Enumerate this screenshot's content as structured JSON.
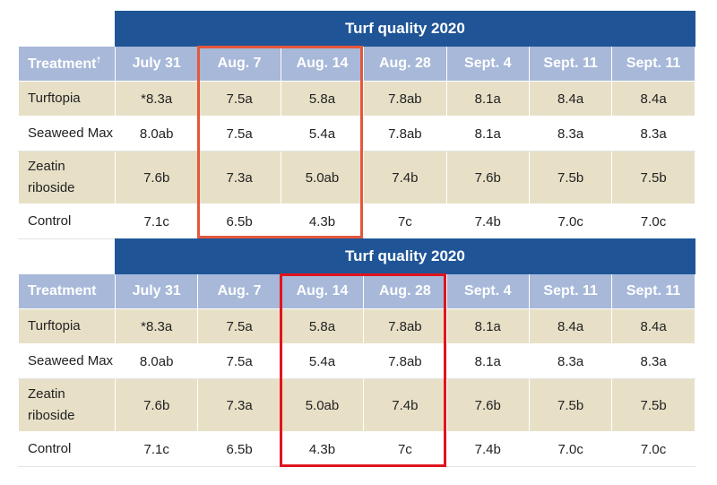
{
  "tables": [
    {
      "title": "Turf quality 2020",
      "headers": [
        "Treatment†",
        "July 31",
        "Aug. 7",
        "Aug. 14",
        "Aug. 28",
        "Sept. 4",
        "Sept. 11",
        "Sept. 11"
      ],
      "rows": [
        {
          "name": "Turftopia",
          "values": [
            "*8.3a",
            "7.5a",
            "5.8a",
            "7.8ab",
            "8.1a",
            "8.4a",
            "8.4a"
          ]
        },
        {
          "name": "Seaweed Max",
          "values": [
            "8.0ab",
            "7.5a",
            "5.4a",
            "7.8ab",
            "8.1a",
            "8.3a",
            "8.3a"
          ]
        },
        {
          "name": "Zeatin riboside",
          "values": [
            "7.6b",
            "7.3a",
            "5.0ab",
            "7.4b",
            "7.6b",
            "7.5b",
            "7.5b"
          ]
        },
        {
          "name": "Control",
          "values": [
            "7.1c",
            "6.5b",
            "4.3b",
            "7c",
            "7.4b",
            "7.0c",
            "7.0c"
          ]
        }
      ]
    },
    {
      "title": "Turf quality 2020",
      "headers": [
        "Treatment",
        "July 31",
        "Aug. 7",
        "Aug. 14",
        "Aug. 28",
        "Sept. 4",
        "Sept. 11",
        "Sept. 11"
      ],
      "rows": [
        {
          "name": "Turftopia",
          "values": [
            "*8.3a",
            "7.5a",
            "5.8a",
            "7.8ab",
            "8.1a",
            "8.4a",
            "8.4a"
          ]
        },
        {
          "name": "Seaweed Max",
          "values": [
            "8.0ab",
            "7.5a",
            "5.4a",
            "7.8ab",
            "8.1a",
            "8.3a",
            "8.3a"
          ]
        },
        {
          "name": "Zeatin riboside",
          "values": [
            "7.6b",
            "7.3a",
            "5.0ab",
            "7.4b",
            "7.6b",
            "7.5b",
            "7.5b"
          ]
        },
        {
          "name": "Control",
          "values": [
            "7.1c",
            "6.5b",
            "4.3b",
            "7c",
            "7.4b",
            "7.0c",
            "7.0c"
          ]
        }
      ]
    }
  ],
  "highlight_colors": [
    "#e5573b",
    "#e0141e"
  ]
}
